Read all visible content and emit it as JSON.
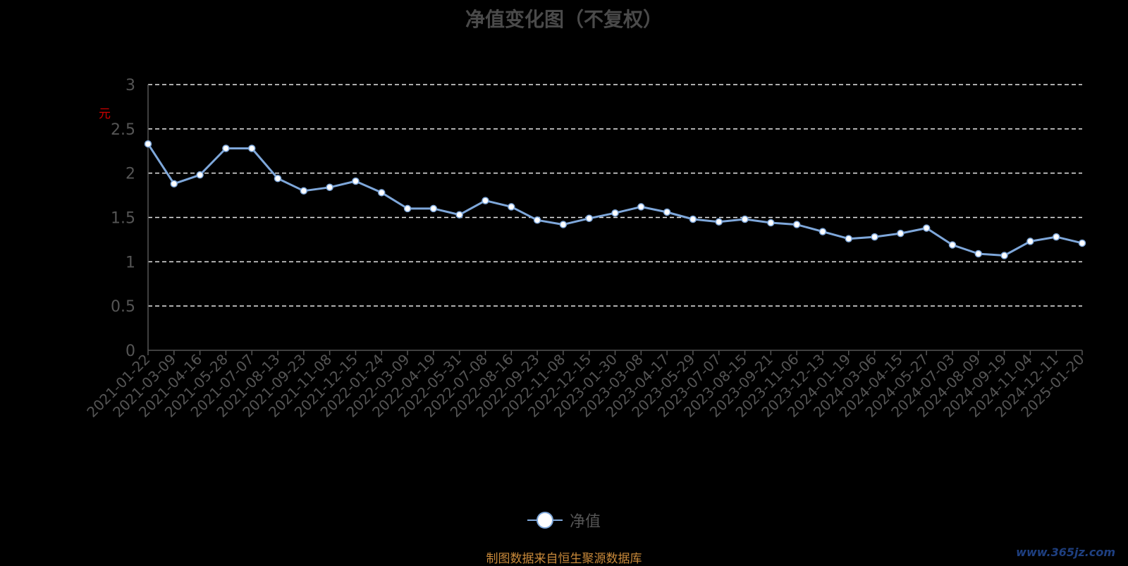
{
  "chart_data": {
    "type": "line",
    "title": "净值变化图（不复权）",
    "ylabel": "元",
    "ylim": [
      0,
      3
    ],
    "yticks": [
      "0",
      "0.5",
      "1",
      "1.5",
      "2",
      "2.5",
      "3"
    ],
    "grid": true,
    "legend_position": "bottom",
    "x": [
      "2021-01-22",
      "2021-03-09",
      "2021-04-16",
      "2021-05-28",
      "2021-07-07",
      "2021-08-13",
      "2021-09-23",
      "2021-11-08",
      "2021-12-15",
      "2022-01-24",
      "2022-03-09",
      "2022-04-19",
      "2022-05-31",
      "2022-07-08",
      "2022-08-16",
      "2022-09-23",
      "2022-11-08",
      "2022-12-15",
      "2023-01-30",
      "2023-03-08",
      "2023-04-17",
      "2023-05-29",
      "2023-07-07",
      "2023-08-15",
      "2023-09-21",
      "2023-11-06",
      "2023-12-13",
      "2024-01-19",
      "2024-03-06",
      "2024-04-15",
      "2024-05-27",
      "2024-07-03",
      "2024-08-09",
      "2024-09-19",
      "2024-11-04",
      "2024-12-11",
      "2025-01-20"
    ],
    "series": [
      {
        "name": "净值",
        "color": "#7ea7da",
        "values": [
          2.33,
          1.88,
          1.98,
          2.28,
          2.28,
          1.94,
          1.8,
          1.84,
          1.91,
          1.78,
          1.6,
          1.6,
          1.53,
          1.69,
          1.62,
          1.47,
          1.42,
          1.49,
          1.55,
          1.62,
          1.56,
          1.48,
          1.45,
          1.48,
          1.44,
          1.42,
          1.34,
          1.26,
          1.28,
          1.32,
          1.38,
          1.19,
          1.09,
          1.07,
          1.23,
          1.28,
          1.21
        ]
      }
    ]
  },
  "source_note": "制图数据来自恒生聚源数据库",
  "watermark": "www.365jz.com"
}
